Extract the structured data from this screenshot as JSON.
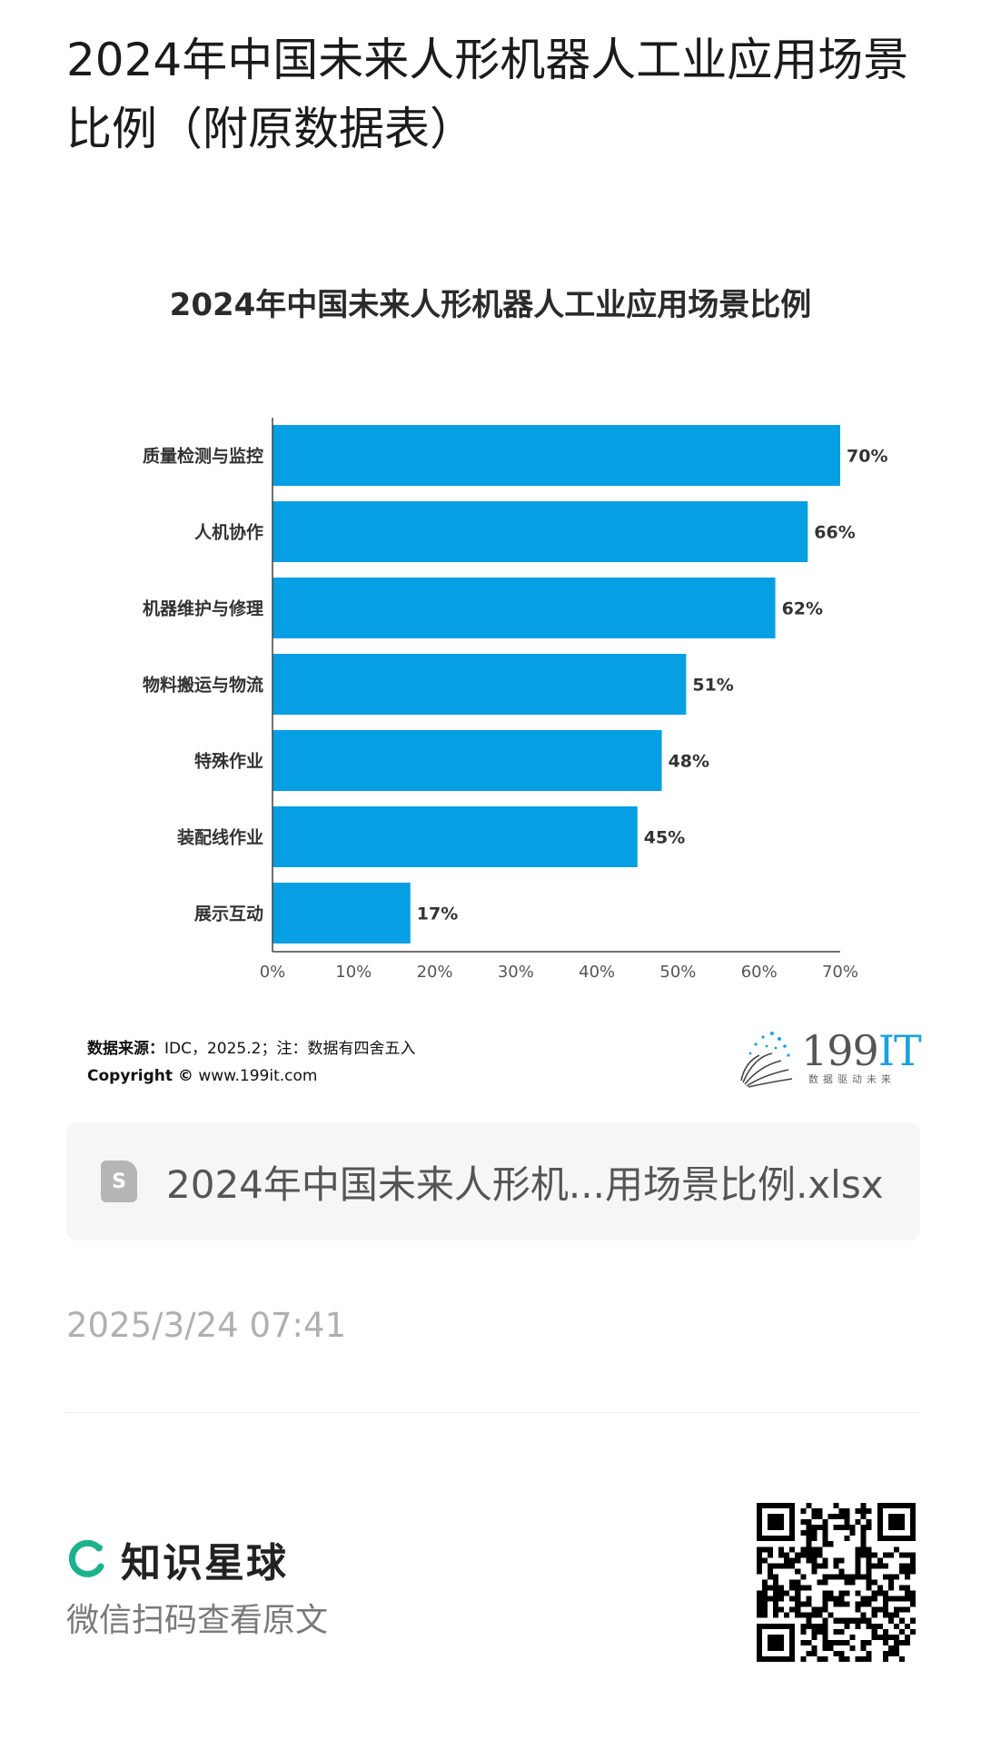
{
  "page": {
    "title": "2024年中国未来人形机器人工业应用场景比例（附原数据表）"
  },
  "chart_data": {
    "type": "bar",
    "orientation": "horizontal",
    "title": "2024年中国未来人形机器人工业应用场景比例",
    "categories": [
      "质量检测与监控",
      "人机协作",
      "机器维护与修理",
      "物料搬运与物流",
      "特殊作业",
      "装配线作业",
      "展示互动"
    ],
    "values": [
      70,
      66,
      62,
      51,
      48,
      45,
      17
    ],
    "value_labels": [
      "70%",
      "66%",
      "62%",
      "51%",
      "48%",
      "45%",
      "17%"
    ],
    "xticks": [
      "0%",
      "10%",
      "20%",
      "30%",
      "40%",
      "50%",
      "60%",
      "70%"
    ],
    "xlim": [
      0,
      70
    ],
    "bar_color": "#069fe3",
    "grid": false,
    "xlabel": "",
    "ylabel": ""
  },
  "source": {
    "label": "数据来源：",
    "text": "IDC，2025.2；注：数据有四舍五入",
    "copyright_label": "Copyright ©",
    "copyright_url": "www.199it.com"
  },
  "logo": {
    "main": "199",
    "accent": "IT",
    "slogan": "数据驱动未来"
  },
  "file": {
    "icon": "spreadsheet-file-icon",
    "icon_glyph": "S",
    "name": "2024年中国未来人形机...用场景比例.xlsx"
  },
  "timestamp": "2025/3/24 07:41",
  "footer": {
    "brand": "知识星球",
    "brand_color": "#1cb28c",
    "scan_text": "微信扫码查看原文"
  }
}
